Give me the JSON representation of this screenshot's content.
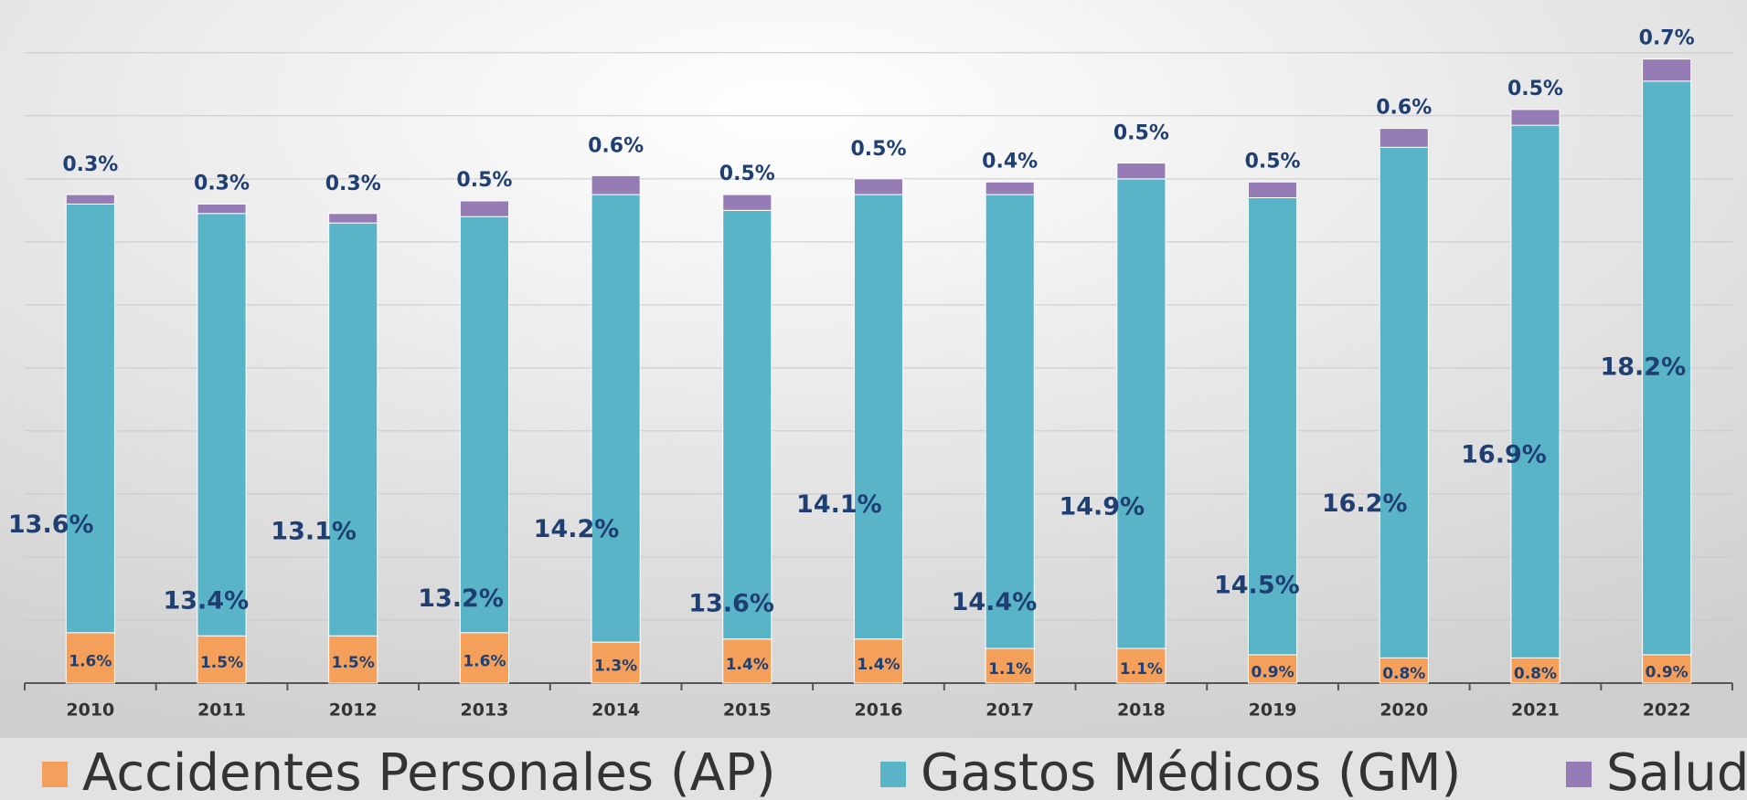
{
  "chart_data": {
    "type": "stacked_bar",
    "categories": [
      "2010",
      "2011",
      "2012",
      "2013",
      "2014",
      "2015",
      "2016",
      "2017",
      "2018",
      "2019",
      "2020",
      "2021",
      "2022"
    ],
    "series": [
      {
        "name": "Accidentes Personales (AP)",
        "color": "#f5a05a",
        "values": [
          1.6,
          1.5,
          1.5,
          1.6,
          1.3,
          1.4,
          1.4,
          1.1,
          1.1,
          0.9,
          0.8,
          0.8,
          0.9
        ],
        "value_labels": [
          "1.6%",
          "1.5%",
          "1.5%",
          "1.6%",
          "1.3%",
          "1.4%",
          "1.4%",
          "1.1%",
          "1.1%",
          "0.9%",
          "0.8%",
          "0.8%",
          "0.9%"
        ]
      },
      {
        "name": "Gastos Médicos (GM)",
        "color": "#5ab4c8",
        "values": [
          13.6,
          13.4,
          13.1,
          13.2,
          14.2,
          13.6,
          14.1,
          14.4,
          14.9,
          14.5,
          16.2,
          16.9,
          18.2
        ],
        "value_labels": [
          "13.6%",
          "13.4%",
          "13.1%",
          "13.2%",
          "14.2%",
          "13.6%",
          "14.1%",
          "14.4%",
          "14.9%",
          "14.5%",
          "16.2%",
          "16.9%",
          "18.2%"
        ]
      },
      {
        "name": "Salud",
        "color": "#957cb5",
        "values": [
          0.3,
          0.3,
          0.3,
          0.5,
          0.6,
          0.5,
          0.5,
          0.4,
          0.5,
          0.5,
          0.6,
          0.5,
          0.7
        ],
        "value_labels": [
          "0.3%",
          "0.3%",
          "0.3%",
          "0.5%",
          "0.6%",
          "0.5%",
          "0.5%",
          "0.4%",
          "0.5%",
          "0.5%",
          "0.6%",
          "0.5%",
          "0.7%"
        ]
      }
    ],
    "ylim": [
      0,
      21.5
    ],
    "yticks": [
      0,
      2,
      4,
      6,
      8,
      10,
      12,
      14,
      16,
      18,
      20
    ],
    "grid": true
  }
}
